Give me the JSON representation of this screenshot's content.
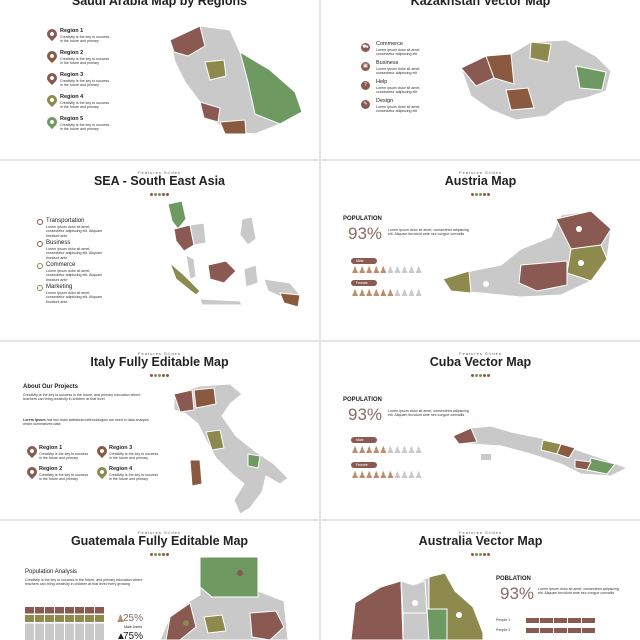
{
  "colors": {
    "accent": "#8a5a52",
    "green": "#6e9a62",
    "olive": "#8e8a4e",
    "brown": "#8a5a40",
    "grey": "#c9c9c9"
  },
  "kicker": "Features Slides",
  "slides": {
    "saudi": {
      "title": "Saudi Arabia Map by Regions",
      "regions": [
        {
          "name": "Region 1",
          "desc": "Creativity is the key to success in the future and primary"
        },
        {
          "name": "Region 2",
          "desc": "Creativity is the key to success in the future and primary"
        },
        {
          "name": "Region 3",
          "desc": "Creativity is the key to success in the future and primary"
        },
        {
          "name": "Region 4",
          "desc": "Creativity is the key to success in the future and primary"
        },
        {
          "name": "Region 5",
          "desc": "Creativity is the key to success in the future and primary"
        }
      ]
    },
    "kazakhstan": {
      "title": "Kazakhstan Vector Map",
      "items": [
        {
          "name": "Commerce",
          "desc": "Lorem ipsum dolor sit amet, consectetur adipiscing elit",
          "icon": "cart-icon"
        },
        {
          "name": "Business",
          "desc": "Lorem ipsum dolor sit amet, consectetur adipiscing elit",
          "icon": "briefcase-icon"
        },
        {
          "name": "Help",
          "desc": "Lorem ipsum dolor sit amet, consectetur adipiscing elit",
          "icon": "help-icon"
        },
        {
          "name": "Design",
          "desc": "Lorem ipsum dolor sit amet, consectetur adipiscing elit",
          "icon": "pencil-icon"
        }
      ]
    },
    "sea": {
      "title": "SEA - South East Asia",
      "items": [
        {
          "name": "Transportation",
          "desc": "Lorem ipsum dolor sit amet, consectetur adipiscing elit. Aliquam tincidunt ante"
        },
        {
          "name": "Business",
          "desc": "Lorem ipsum dolor sit amet, consectetur adipiscing elit. Aliquam tincidunt ante"
        },
        {
          "name": "Commerce",
          "desc": "Lorem ipsum dolor sit amet, consectetur adipiscing elit. Aliquam tincidunt ante"
        },
        {
          "name": "Marketing",
          "desc": "Lorem ipsum dolor sit amet, consectetur adipiscing elit. Aliquam tincidunt ante"
        }
      ]
    },
    "austria": {
      "title": "Austria Map",
      "population": "POPULATION",
      "percent": "93%",
      "desc": "Lorem ipsum dolor sit amet, consectetur adipiscing elit. Aliquam tincidunt ante nec congue convallis",
      "male": "Male",
      "female": "Female"
    },
    "italy": {
      "title": "Italy Fully Editable Map",
      "heading": "About Our Projects",
      "para1": "Creativity is the key to success in the future, and primary education where teachers can bring creativity in children at that level",
      "para2_bold": "Lorem Ipsum",
      "para2": " has two main statistical methodologies are used in data analysis which summarizes data",
      "regions": [
        {
          "name": "Region 1",
          "desc": "Creativity is the key to success in the future and primary"
        },
        {
          "name": "Region 2",
          "desc": "Creativity is the key to success in the future and primary"
        },
        {
          "name": "Region 3",
          "desc": "Creativity is the key to success in the future and primary"
        },
        {
          "name": "Region 4",
          "desc": "Creativity is the key to success in the future and primary"
        }
      ]
    },
    "cuba": {
      "title": "Cuba Vector Map",
      "population": "POPULATION",
      "percent": "93%",
      "desc": "Lorem ipsum dolor sit amet, consectetur adipiscing elit. Aliquam tincidunt ante nec congue convallis",
      "male": "Male",
      "female": "Female"
    },
    "guatemala": {
      "title": "Guatemala Fully Editable Map",
      "heading": "Population Analysis",
      "para": "Creativity is the key to success in the future, and primary education where teachers can bring creativity in children at that level every growing",
      "stat1": "25%",
      "stat1_label": "Male Users",
      "stat2": "75%"
    },
    "australia": {
      "title": "Australia Vector Map",
      "population": "POBLATION",
      "percent": "93%",
      "desc": "Lorem ipsum dolor sit amet, consectetur adipiscing elit. Aliquam tincidunt ante nec congue convallis",
      "people1": "People 1",
      "people2": "People 2"
    }
  }
}
